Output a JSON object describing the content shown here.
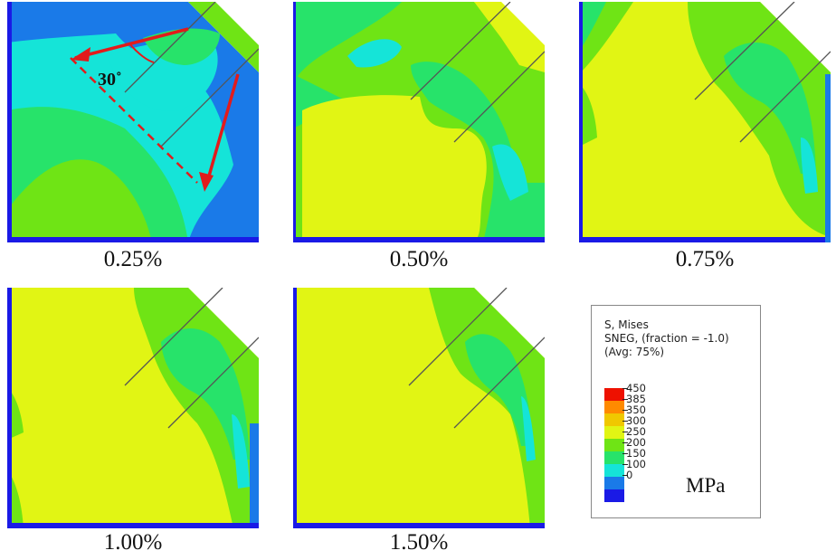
{
  "figure": {
    "angle_label": "30˚",
    "colors": {
      "c0": "#1a1ae6",
      "c100": "#1a7ae8",
      "c150": "#15e4d8",
      "c200": "#27e36a",
      "c250": "#6fe415",
      "c300": "#e1f514",
      "c350": "#f0c800",
      "c385": "#ff8a00",
      "c450": "#ee1100",
      "arrow": "#e21b1b"
    }
  },
  "panels": [
    {
      "caption": "0.25%"
    },
    {
      "caption": "0.50%"
    },
    {
      "caption": "0.75%"
    },
    {
      "caption": "1.00%"
    },
    {
      "caption": "1.50%"
    }
  ],
  "legend": {
    "title_line1": "S, Mises",
    "title_line2": "SNEG, (fraction = -1.0)",
    "title_line3": "(Avg: 75%)",
    "ticks": [
      "450",
      "385",
      "350",
      "300",
      "250",
      "200",
      "150",
      "100",
      "0"
    ],
    "unit": "MPa"
  }
}
